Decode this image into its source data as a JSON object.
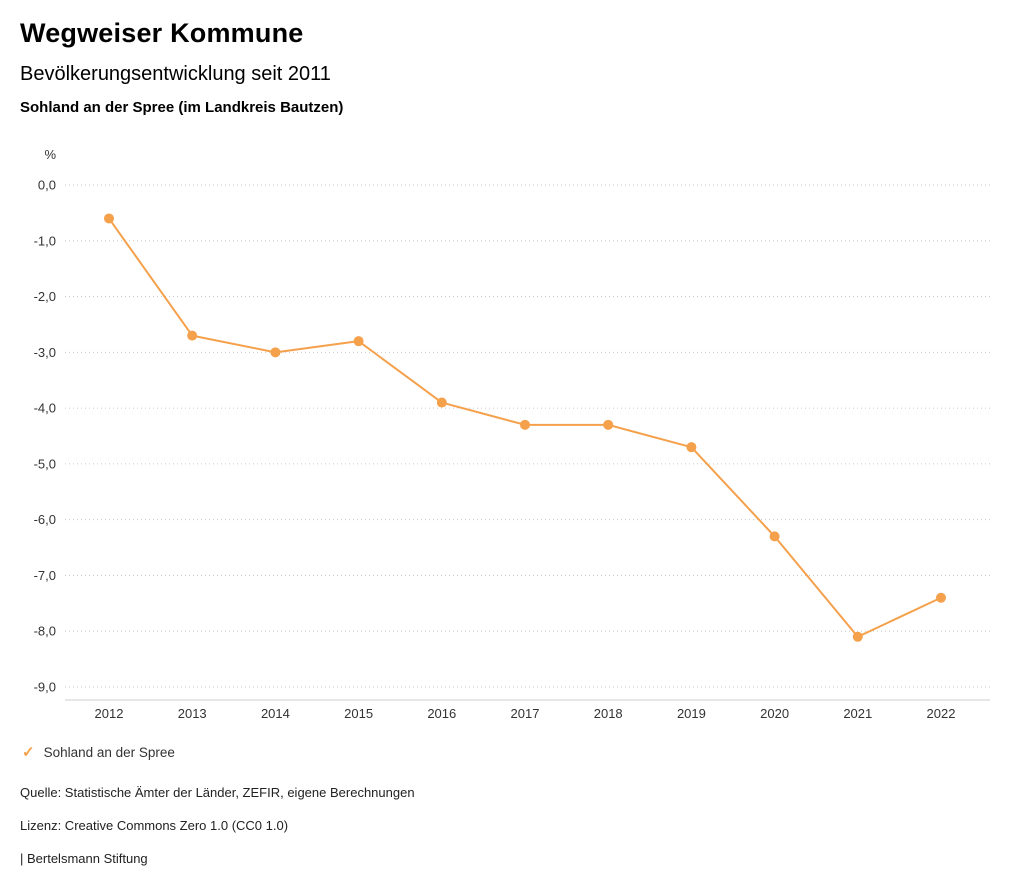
{
  "header": {
    "title": "Wegweiser Kommune",
    "subtitle": "Bevölkerungsentwicklung seit 2011",
    "region": "Sohland an der Spree (im Landkreis Bautzen)"
  },
  "chart_data": {
    "type": "line",
    "title": "Bevölkerungsentwicklung seit 2011",
    "subtitle": "Sohland an der Spree (im Landkreis Bautzen)",
    "x": [
      "2012",
      "2013",
      "2014",
      "2015",
      "2016",
      "2017",
      "2018",
      "2019",
      "2020",
      "2021",
      "2022"
    ],
    "series": [
      {
        "name": "Sohland an der Spree",
        "values": [
          -0.6,
          -2.7,
          -3.0,
          -2.8,
          -3.9,
          -4.3,
          -4.3,
          -4.7,
          -6.3,
          -8.1,
          -7.4
        ],
        "color": "#f5a04b"
      }
    ],
    "xlabel": "",
    "ylabel": "%",
    "ylim": [
      -9.0,
      0.0
    ],
    "ytick_step": 1.0,
    "ytick_labels": [
      "0,0",
      "-1,0",
      "-2,0",
      "-3,0",
      "-4,0",
      "-5,0",
      "-6,0",
      "-7,0",
      "-8,0",
      "-9,0"
    ],
    "grid": "horizontal dotted",
    "legend_position": "bottom-left"
  },
  "legend": {
    "check_icon": "✓",
    "label": "Sohland an der Spree",
    "color": "#f5a04b"
  },
  "footer": {
    "source": "Quelle: Statistische Ämter der Länder, ZEFIR, eigene Berechnungen",
    "license": "Lizenz: Creative Commons Zero 1.0 (CC0 1.0)",
    "attribution": "| Bertelsmann Stiftung"
  }
}
